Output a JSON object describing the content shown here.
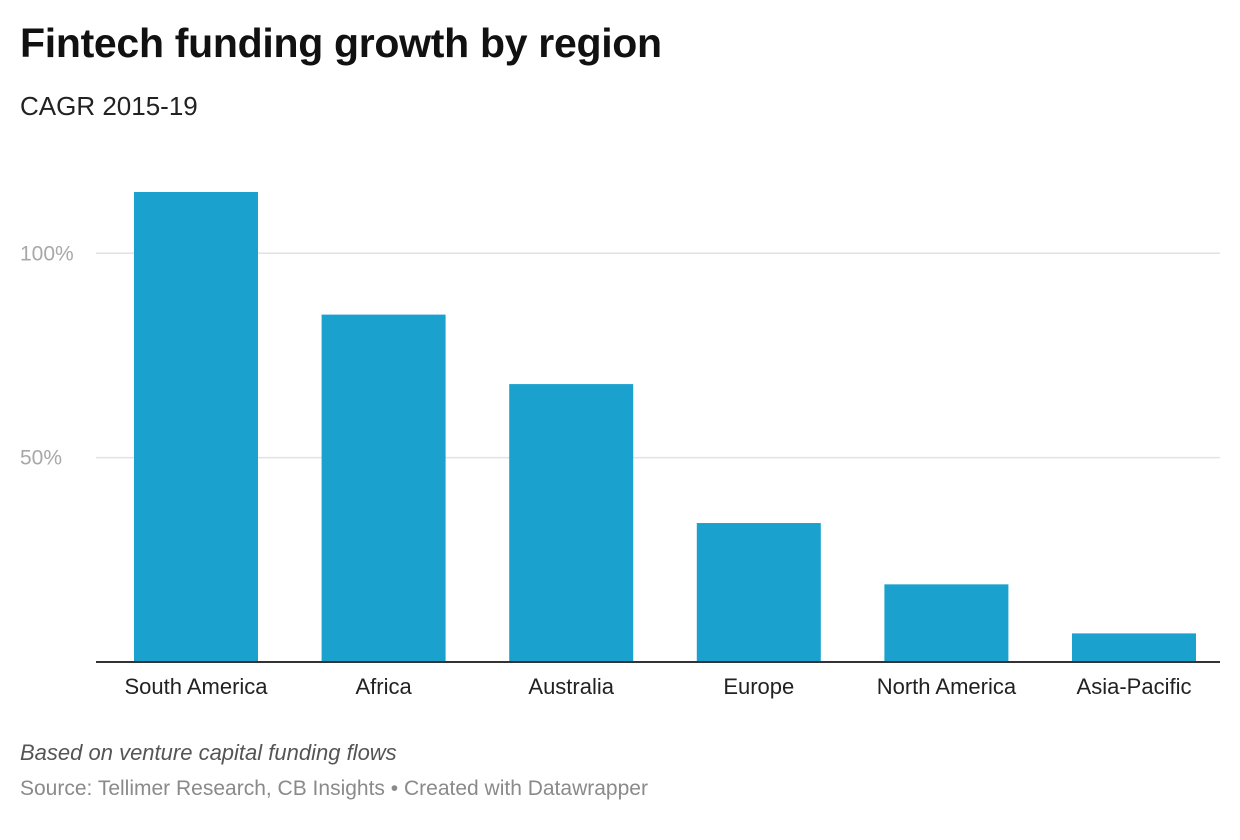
{
  "header": {
    "title": "Fintech funding growth by region",
    "subtitle": "CAGR 2015-19"
  },
  "footer": {
    "note": "Based on venture capital funding flows",
    "source": "Source: Tellimer Research, CB Insights",
    "separator": "•",
    "credit": "Created with Datawrapper"
  },
  "colors": {
    "bar": "#1aa1ce",
    "gridline": "#e2e2e2",
    "baseline": "#333333"
  },
  "chart_data": {
    "type": "bar",
    "categories": [
      "South America",
      "Africa",
      "Australia",
      "Europe",
      "North America",
      "Asia-Pacific"
    ],
    "values": [
      115,
      85,
      68,
      34,
      19,
      7
    ],
    "ylim": [
      0,
      115
    ],
    "yticks": [
      {
        "value": 50,
        "label": "50%"
      },
      {
        "value": 100,
        "label": "100%"
      }
    ],
    "grid": true,
    "legend": "none",
    "xlabel": "",
    "ylabel": ""
  }
}
